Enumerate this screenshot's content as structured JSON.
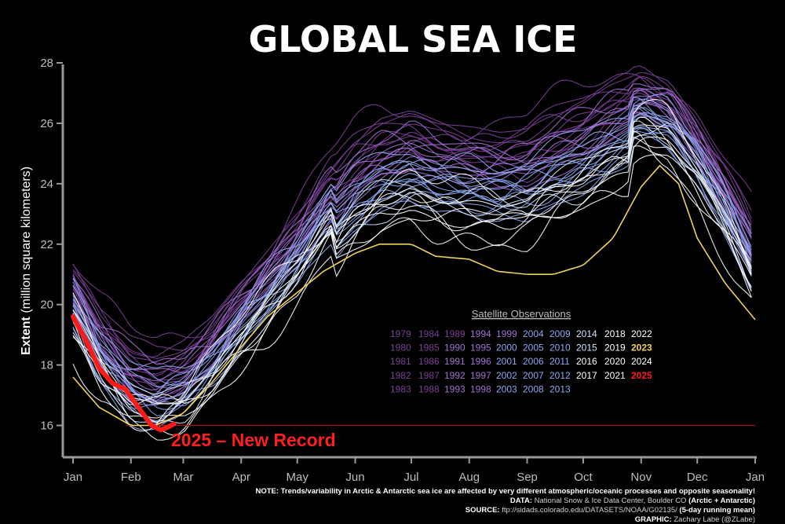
{
  "title": "GLOBAL SEA ICE",
  "ylabel_bold": "Extent",
  "ylabel_rest": " (million square kilometers)",
  "legend_title": "Satellite Observations",
  "record_label": "2025 – New Record",
  "footnote": {
    "note": "NOTE: Trends/variability in Arctic & Antarctic sea ice are affected by very different atmospheric/oceanic processes and opposite seasonality!",
    "data_label": "DATA:",
    "data_text": " National Snow & Ice Data Center, Boulder CO ",
    "data_bold": "(Arctic + Antarctic)",
    "source_label": "SOURCE:",
    "source_text": " ftp://sidads.colorado.edu/DATASETS/NOAA/G02135/ ",
    "source_bold": "(5-day running mean)",
    "graphic_label": "GRAPHIC:",
    "graphic_text": " Zachary Labe (@ZLabe)"
  },
  "colors": {
    "background": "#000000",
    "early_years": "#7a3f95",
    "mid_years": "#a06fd0",
    "late_years": "#8ea8f0",
    "recent_years": "#cfe6ff",
    "year_2023": "#f2d15b",
    "year_2025": "#ff1a1a",
    "record_line": "#cc0000"
  },
  "chart_data": {
    "type": "line",
    "title": "GLOBAL SEA ICE",
    "xlabel": "",
    "ylabel": "Extent (million square kilometers)",
    "x_ticks": [
      "Jan",
      "Feb",
      "Mar",
      "Apr",
      "May",
      "Jun",
      "Jul",
      "Aug",
      "Sep",
      "Oct",
      "Nov",
      "Dec",
      "Jan"
    ],
    "y_ticks": [
      16,
      18,
      20,
      22,
      24,
      26,
      28
    ],
    "ylim": [
      15,
      28
    ],
    "grid": false,
    "legend_position": "center-right",
    "legend_years": [
      [
        "1979",
        "1984",
        "1989",
        "1994",
        "1999",
        "2004",
        "2009",
        "2014",
        "2018",
        "2022"
      ],
      [
        "1980",
        "1985",
        "1990",
        "1995",
        "2000",
        "2005",
        "2010",
        "2015",
        "2019",
        "2023"
      ],
      [
        "1981",
        "1986",
        "1991",
        "1996",
        "2001",
        "2006",
        "2011",
        "2016",
        "2020",
        "2024"
      ],
      [
        "1982",
        "1987",
        "1992",
        "1997",
        "2002",
        "2007",
        "2012",
        "2017",
        "2021",
        "2025"
      ],
      [
        "1983",
        "1988",
        "1993",
        "1998",
        "2003",
        "2008",
        "2013"
      ]
    ],
    "record_threshold": 16.0,
    "month_start_day": [
      1,
      32,
      60,
      91,
      121,
      152,
      182,
      213,
      244,
      274,
      305,
      335,
      366
    ],
    "climatology": {
      "day": [
        1,
        15,
        32,
        45,
        60,
        75,
        91,
        105,
        121,
        135,
        152,
        165,
        182,
        195,
        213,
        228,
        244,
        258,
        274,
        290,
        305,
        320,
        335,
        350,
        366
      ],
      "extent": [
        20.4,
        18.8,
        17.6,
        17.3,
        17.6,
        18.5,
        19.8,
        20.8,
        22.0,
        23.3,
        24.5,
        25.1,
        25.4,
        25.1,
        24.9,
        24.8,
        24.9,
        25.4,
        25.8,
        26.4,
        26.8,
        26.4,
        25.2,
        23.6,
        21.6
      ]
    },
    "year_2023": {
      "day": [
        1,
        15,
        32,
        45,
        60,
        75,
        91,
        105,
        121,
        135,
        152,
        165,
        182,
        195,
        213,
        228,
        244,
        258,
        274,
        290,
        305,
        315,
        325,
        335,
        350,
        366
      ],
      "extent": [
        17.6,
        16.6,
        16.0,
        16.0,
        16.4,
        17.4,
        18.6,
        19.6,
        20.4,
        21.1,
        21.7,
        22.0,
        22.0,
        21.6,
        21.5,
        21.1,
        21.0,
        21.0,
        21.3,
        22.2,
        23.9,
        24.6,
        24.0,
        22.2,
        20.7,
        19.5
      ]
    },
    "year_2025": {
      "day": [
        1,
        8,
        15,
        22,
        29,
        36,
        43,
        48,
        52,
        55
      ],
      "extent": [
        19.6,
        18.8,
        17.9,
        17.4,
        17.2,
        16.6,
        16.0,
        15.85,
        15.95,
        16.05
      ]
    }
  }
}
